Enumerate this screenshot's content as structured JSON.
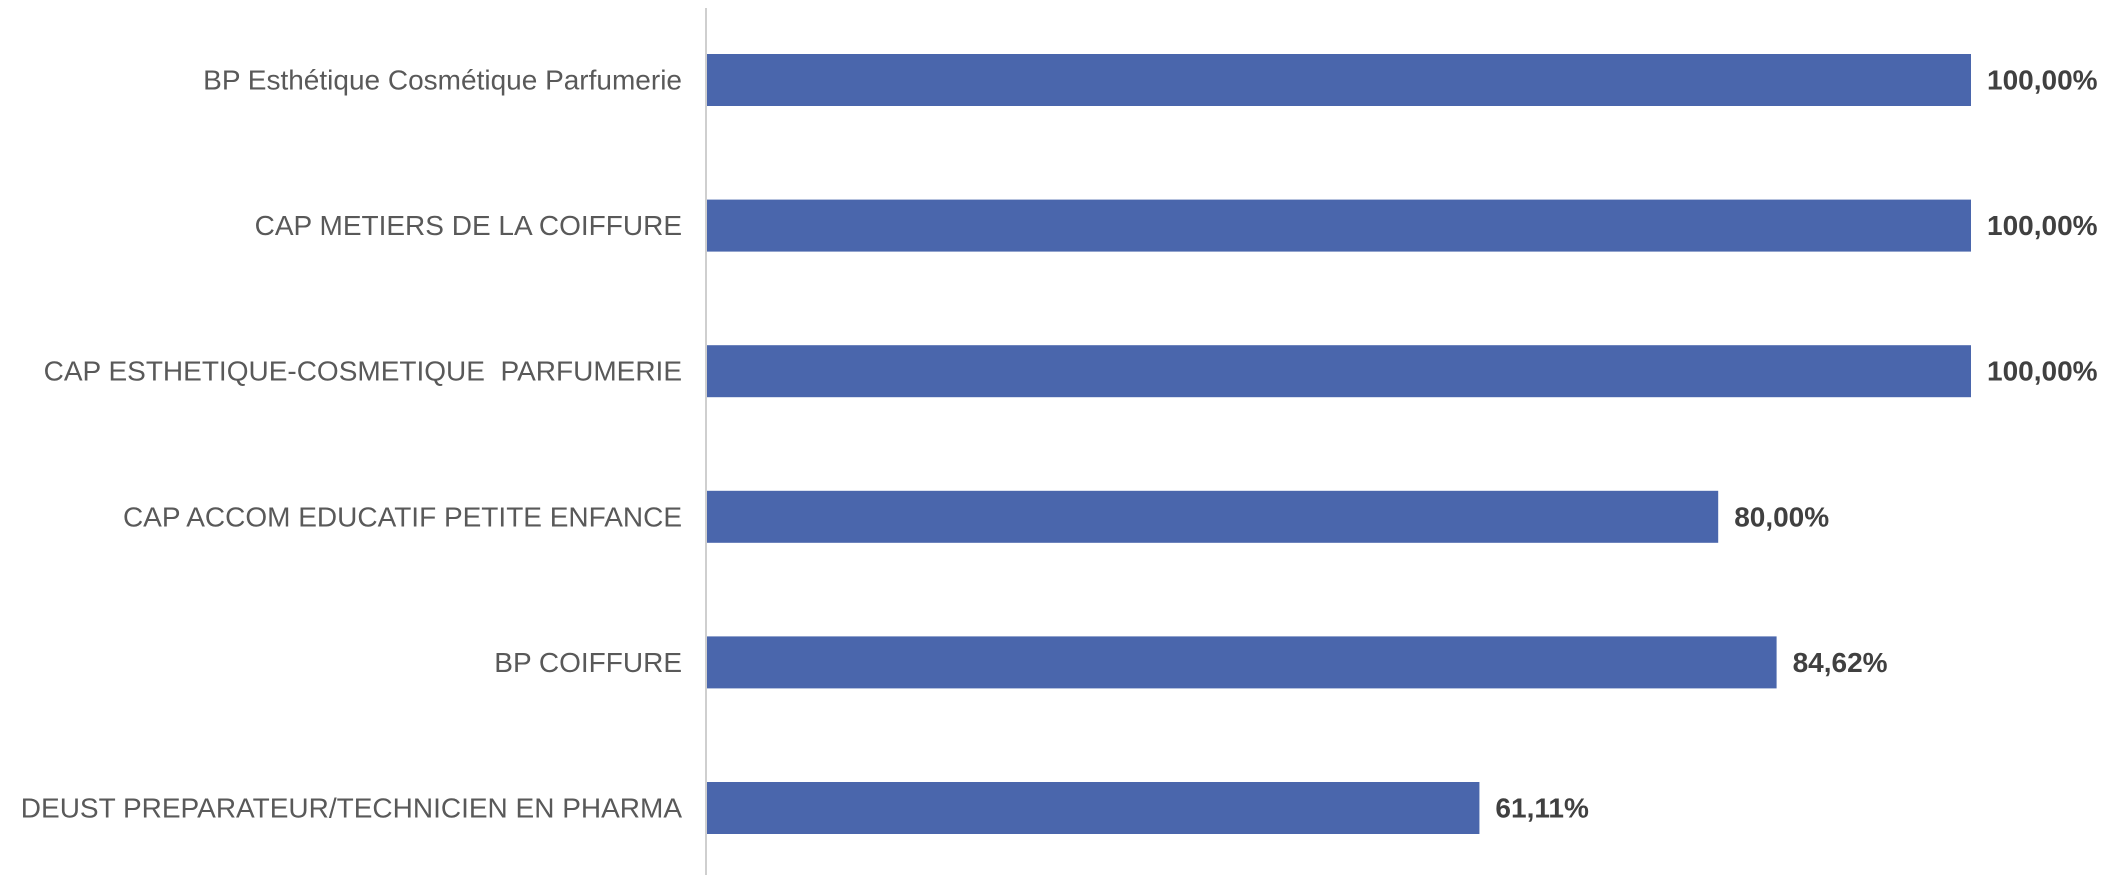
{
  "chart_data": {
    "type": "bar",
    "orientation": "horizontal",
    "categories": [
      "BP Esthétique Cosmétique Parfumerie",
      "CAP METIERS DE LA COIFFURE",
      "CAP ESTHETIQUE-COSMETIQUE  PARFUMERIE",
      "CAP ACCOM EDUCATIF PETITE ENFANCE",
      "BP COIFFURE",
      "DEUST PREPARATEUR/TECHNICIEN EN PHARMA"
    ],
    "values": [
      100,
      100,
      100,
      80,
      84.62,
      61.11
    ],
    "data_labels": [
      "100,00%",
      "100,00%",
      "100,00%",
      "80,00%",
      "84,62%",
      "61,11%"
    ],
    "title": "",
    "xlabel": "",
    "ylabel": "",
    "xlim": [
      0,
      100
    ],
    "grid": false,
    "legend": "none",
    "colors": {
      "bar": "#4A66AC",
      "axis": "#BFBFBF",
      "category_text": "#595959",
      "value_text": "#404040"
    }
  }
}
